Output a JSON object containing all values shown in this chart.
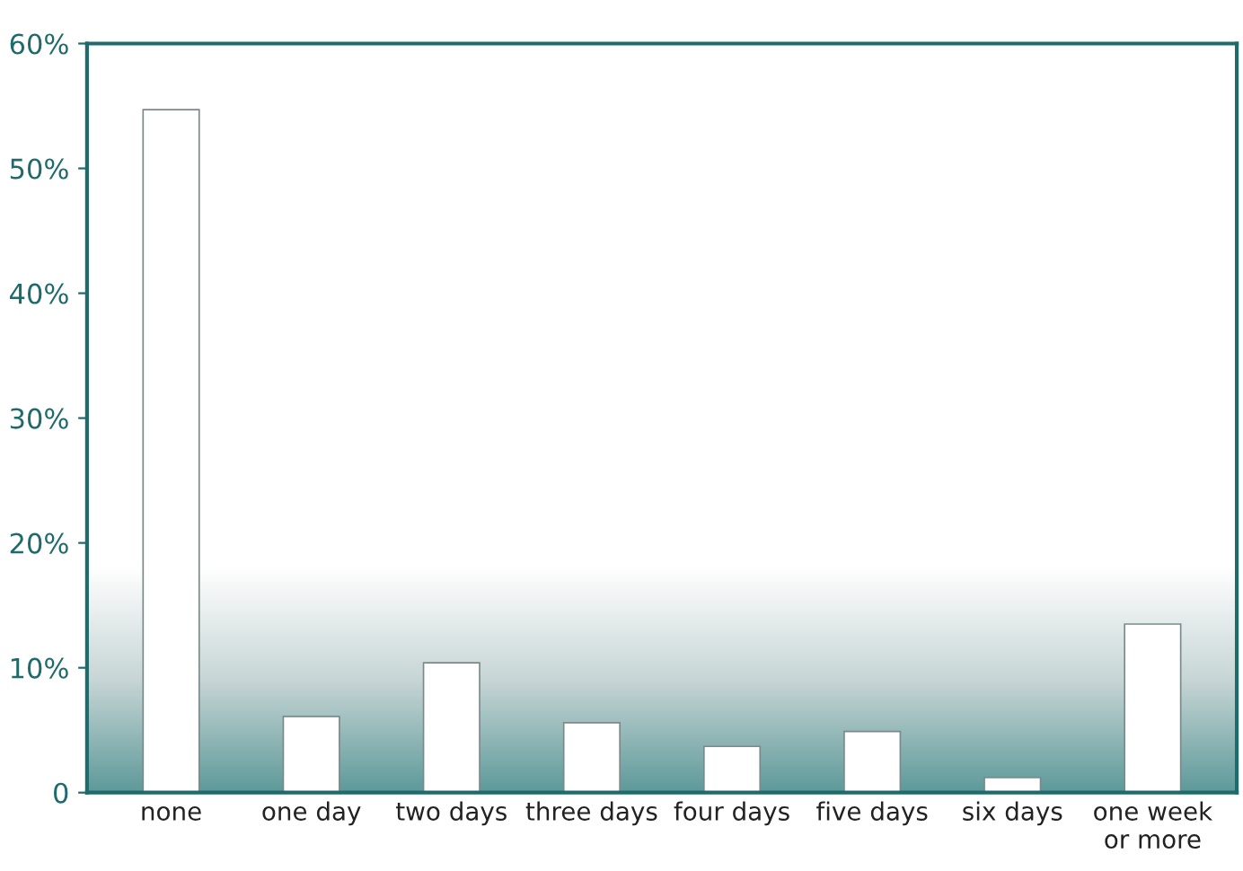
{
  "chart_data": {
    "type": "bar",
    "categories": [
      "none",
      "one day",
      "two days",
      "three days",
      "four days",
      "five days",
      "six days",
      "one week\nor more"
    ],
    "values": [
      54.7,
      6.1,
      10.4,
      5.6,
      3.7,
      4.9,
      1.2,
      13.5
    ],
    "color": "#ffffff",
    "ylim": [
      0,
      60
    ],
    "yticks": [
      {
        "value": 0,
        "label": "0"
      },
      {
        "value": 10,
        "label": "10%"
      },
      {
        "value": 20,
        "label": "20%"
      },
      {
        "value": 30,
        "label": "30%"
      },
      {
        "value": 40,
        "label": "40%"
      },
      {
        "value": 50,
        "label": "50%"
      },
      {
        "value": 60,
        "label": "60%"
      }
    ],
    "grid": false,
    "legend": false
  }
}
